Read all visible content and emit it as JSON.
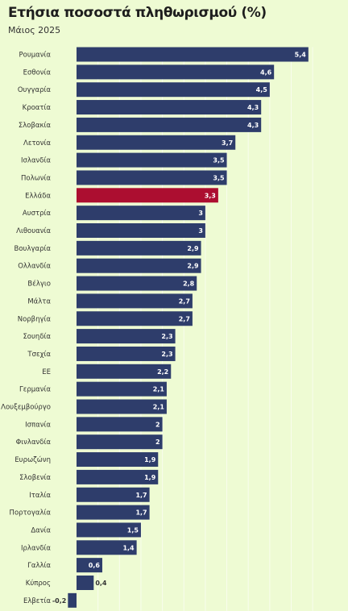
{
  "chart_data": {
    "type": "bar",
    "orientation": "horizontal",
    "title": "Ετήσια ποσοστά πληθωρισμού (%)",
    "subtitle": "Μάιος 2025",
    "categories": [
      "Ρουμανία",
      "Εσθονία",
      "Ουγγαρία",
      "Κροατία",
      "Σλοβακία",
      "Λετονία",
      "Ισλανδία",
      "Πολωνία",
      "Ελλάδα",
      "Αυστρία",
      "Λιθουανία",
      "Βουλγαρία",
      "Ολλανδία",
      "Βέλγιο",
      "Μάλτα",
      "Νορβηγία",
      "Σουηδία",
      "Τσεχία",
      "ΕΕ",
      "Γερμανία",
      "Λουξεμβούργο",
      "Ισπανία",
      "Φινλανδία",
      "Ευρωζώνη",
      "Σλοβενία",
      "Ιταλία",
      "Πορτογαλία",
      "Δανία",
      "Ιρλανδία",
      "Γαλλία",
      "Κύπρος",
      "Ελβετία"
    ],
    "values": [
      5.4,
      4.6,
      4.5,
      4.3,
      4.3,
      3.7,
      3.5,
      3.5,
      3.3,
      3,
      3,
      2.9,
      2.9,
      2.8,
      2.7,
      2.7,
      2.3,
      2.3,
      2.2,
      2.1,
      2.1,
      2,
      2,
      1.9,
      1.9,
      1.7,
      1.7,
      1.5,
      1.4,
      0.6,
      0.4,
      -0.2
    ],
    "value_labels": [
      "5,4",
      "4,6",
      "4,5",
      "4,3",
      "4,3",
      "3,7",
      "3,5",
      "3,5",
      "3,3",
      "3",
      "3",
      "2,9",
      "2,9",
      "2,8",
      "2,7",
      "2,7",
      "2,3",
      "2,3",
      "2,2",
      "2,1",
      "2,1",
      "2",
      "2",
      "1,9",
      "1,9",
      "1,7",
      "1,7",
      "1,5",
      "1,4",
      "0,6",
      "0,4",
      "-0,2"
    ],
    "highlight_category": "Ελλάδα",
    "colors": {
      "bar": "#2e3d6b",
      "highlight": "#ac0e30",
      "background": "#eefbd3",
      "label_inside": "#ffffff",
      "label_outside": "#333333"
    },
    "xlim": [
      -0.2,
      5.65
    ],
    "grid": true,
    "legend": "none"
  }
}
